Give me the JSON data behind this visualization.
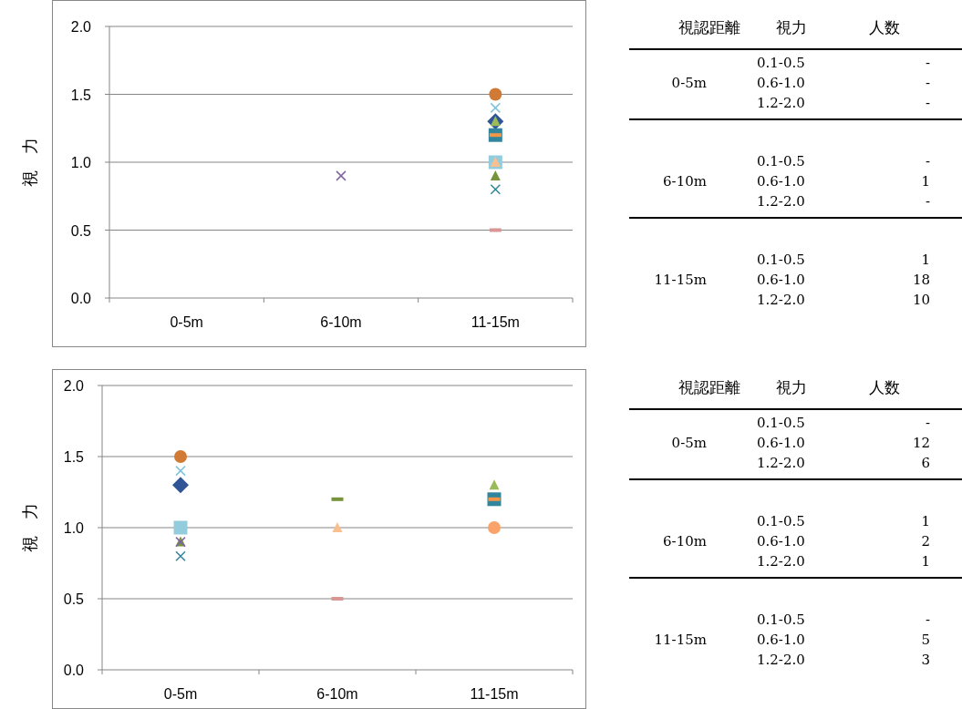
{
  "chart_data": [
    {
      "type": "scatter",
      "categories": [
        "0-5m",
        "6-10m",
        "11-15m"
      ],
      "ylabel": "視　力",
      "ylim": [
        0,
        2
      ],
      "yticks": [
        {
          "value": 0,
          "label": "0.0"
        },
        {
          "value": 0.5,
          "label": "0.5"
        },
        {
          "value": 1,
          "label": "1.0"
        },
        {
          "value": 1.5,
          "label": "1.5"
        },
        {
          "value": 2,
          "label": "2.0"
        }
      ],
      "grid": "y",
      "series": [
        {
          "marker": "circle",
          "color": "#d07a35",
          "values": [
            null,
            null,
            1.5
          ]
        },
        {
          "marker": "cross",
          "color": "#7fc4dc",
          "values": [
            null,
            null,
            1.4
          ]
        },
        {
          "marker": "diamond",
          "color": "#2f5597",
          "values": [
            null,
            null,
            1.3
          ]
        },
        {
          "marker": "triangle",
          "color": "#9bbb59",
          "values": [
            null,
            null,
            1.3
          ]
        },
        {
          "marker": "square",
          "color": "#31859c",
          "values": [
            null,
            null,
            1.2
          ]
        },
        {
          "color": "#f79646",
          "values": [
            null,
            null,
            1.2
          ]
        },
        {
          "marker": "square",
          "color": "#93cddd",
          "values": [
            null,
            null,
            1.0
          ]
        },
        {
          "marker": "triangle",
          "color": "#fabf8f",
          "values": [
            null,
            null,
            1.0
          ]
        },
        {
          "marker": "triangle",
          "color": "#77933c",
          "values": [
            null,
            null,
            0.9
          ]
        },
        {
          "marker": "cross",
          "color": "#31859c",
          "values": [
            null,
            null,
            0.8
          ]
        },
        {
          "color": "#d99694",
          "values": [
            null,
            null,
            0.5
          ]
        },
        {
          "marker": "cross",
          "color": "#8064a2",
          "values": [
            null,
            0.9,
            null
          ]
        }
      ]
    },
    {
      "type": "other",
      "categories": [
        "視認距離",
        "視力",
        "人数"
      ],
      "cell_labels": [
        [
          null,
          "0.1-0.5",
          "-"
        ],
        [
          "0-5m",
          "0.6-1.0",
          "-"
        ],
        [
          null,
          "1.2-2.0",
          "-"
        ],
        [
          null,
          "0.1-0.5",
          "-"
        ],
        [
          "6-10m",
          "0.6-1.0",
          "1"
        ],
        [
          null,
          "1.2-2.0",
          "-"
        ],
        [
          null,
          "0.1-0.5",
          "1"
        ],
        [
          "11-15m",
          "0.6-1.0",
          "18"
        ],
        [
          null,
          "1.2-2.0",
          "10"
        ]
      ]
    },
    {
      "type": "scatter",
      "categories": [
        "0-5m",
        "6-10m",
        "11-15m"
      ],
      "ylabel": "視　力",
      "ylim": [
        0,
        2
      ],
      "yticks": [
        {
          "value": 0,
          "label": "0.0"
        },
        {
          "value": 0.5,
          "label": "0.5"
        },
        {
          "value": 1,
          "label": "1.0"
        },
        {
          "value": 1.5,
          "label": "1.5"
        },
        {
          "value": 2,
          "label": "2.0"
        }
      ],
      "grid": "y",
      "series": [
        {
          "marker": "circle",
          "color": "#d07a35",
          "values": [
            1.5,
            null,
            null
          ]
        },
        {
          "marker": "cross",
          "color": "#7fc4dc",
          "values": [
            1.4,
            null,
            null
          ]
        },
        {
          "marker": "diamond",
          "color": "#2f5597",
          "values": [
            1.3,
            null,
            null
          ]
        },
        {
          "marker": "square",
          "color": "#93cddd",
          "values": [
            1.0,
            null,
            null
          ]
        },
        {
          "marker": "triangle",
          "color": "#77933c",
          "values": [
            0.9,
            null,
            null
          ]
        },
        {
          "marker": "cross",
          "color": "#8064a2",
          "values": [
            0.9,
            null,
            null
          ]
        },
        {
          "marker": "cross",
          "color": "#31859c",
          "values": [
            0.8,
            null,
            null
          ]
        },
        {
          "color": "#77933c",
          "values": [
            null,
            1.2,
            null
          ]
        },
        {
          "marker": "triangle",
          "color": "#fabf8f",
          "values": [
            null,
            1.0,
            null
          ]
        },
        {
          "color": "#d99694",
          "values": [
            null,
            0.5,
            null
          ]
        },
        {
          "marker": "triangle",
          "color": "#9bbb59",
          "values": [
            null,
            null,
            1.3
          ]
        },
        {
          "marker": "square",
          "color": "#31859c",
          "values": [
            null,
            null,
            1.2
          ]
        },
        {
          "color": "#f79646",
          "values": [
            null,
            null,
            1.2
          ]
        },
        {
          "marker": "circle",
          "color": "#f9a36a",
          "values": [
            null,
            null,
            1.0
          ]
        }
      ]
    },
    {
      "type": "other",
      "categories": [
        "視認距離",
        "視力",
        "人数"
      ],
      "cell_labels": [
        [
          null,
          "0.1-0.5",
          "-"
        ],
        [
          "0-5m",
          "0.6-1.0",
          "12"
        ],
        [
          null,
          "1.2-2.0",
          "6"
        ],
        [
          null,
          "0.1-0.5",
          "1"
        ],
        [
          "6-10m",
          "0.6-1.0",
          "2"
        ],
        [
          null,
          "1.2-2.0",
          "1"
        ],
        [
          null,
          "0.1-0.5",
          "-"
        ],
        [
          "11-15m",
          "0.6-1.0",
          "5"
        ],
        [
          null,
          "1.2-2.0",
          "3"
        ]
      ]
    }
  ]
}
